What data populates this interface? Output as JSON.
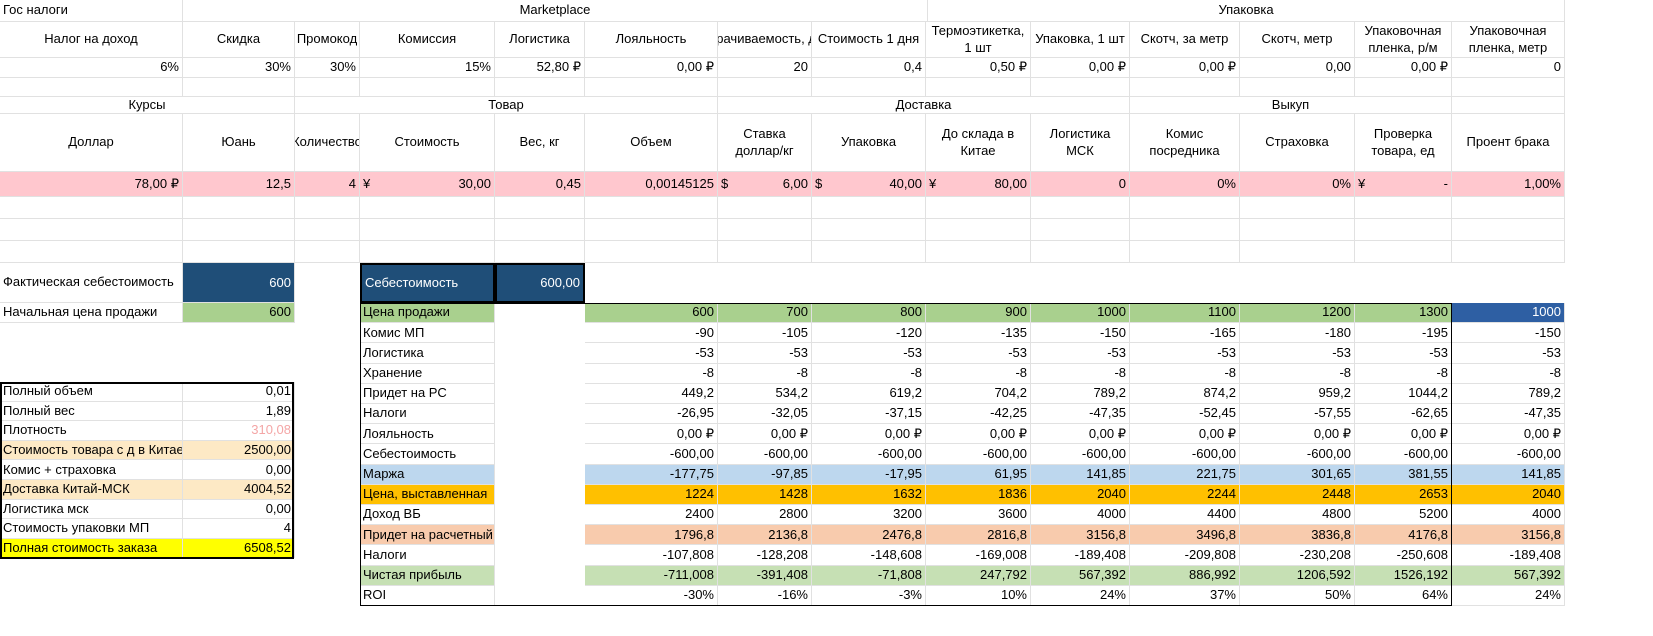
{
  "row1": [
    {
      "key": "gos",
      "text": "Гос налоги",
      "align": "l"
    },
    {
      "key": "marketplace",
      "text": "Marketplace",
      "align": "c"
    },
    {
      "key": "upakovka",
      "text": "Упаковка",
      "align": "c"
    }
  ],
  "params_headers": [
    "Налог на доход",
    "Скидка",
    "Промокод",
    "Комиссия",
    "Логистика",
    "Лояльность",
    "Оборачиваемость, дней",
    "Стоимость 1 дня",
    "Термоэтикетка, 1 шт",
    "Упаковка, 1 шт",
    "Скотч, за метр",
    "Скотч, метр",
    "Упаковочная пленка, р/м",
    "Упаковочная пленка, метр"
  ],
  "params_values": [
    "6%",
    "30%",
    "30%",
    "15%",
    "52,80 ₽",
    "0,00 ₽",
    "20",
    "0,4",
    "0,50 ₽",
    "0,00 ₽",
    "0,00 ₽",
    "0,00",
    "0,00 ₽",
    "0"
  ],
  "groups2": [
    {
      "key": "kursy",
      "text": "Курсы"
    },
    {
      "key": "tovar",
      "text": "Товар"
    },
    {
      "key": "dostavka",
      "text": "Доставка"
    },
    {
      "key": "vykup",
      "text": "Выкуп"
    }
  ],
  "product_headers": [
    "Доллар",
    "Юань",
    "Количество",
    "Стоимость",
    "Вес, кг",
    "Объем",
    "Ставка доллар/кг",
    "Упаковка",
    "До склада в Китае",
    "Логистика МСК",
    "Комис посредника",
    "Страховка",
    "Проверка товара, ед",
    "Проент брака"
  ],
  "product_values": [
    {
      "v": "78,00 ₽"
    },
    {
      "v": "12,5"
    },
    {
      "v": "4"
    },
    {
      "p": "¥",
      "v": "30,00"
    },
    {
      "v": "0,45"
    },
    {
      "v": "0,00145125"
    },
    {
      "p": "$",
      "v": "6,00"
    },
    {
      "p": "$",
      "v": "40,00"
    },
    {
      "p": "¥",
      "v": "80,00"
    },
    {
      "v": "0"
    },
    {
      "v": "0%"
    },
    {
      "v": "0%"
    },
    {
      "p": "¥",
      "v": "-"
    },
    {
      "v": "1,00%"
    }
  ],
  "fact": {
    "label": "Фактическая себестоимость",
    "value": "600"
  },
  "start_price": {
    "label": "Начальная цена продажи",
    "value": "600"
  },
  "summary": [
    {
      "label": "Полный объем",
      "value": "0,01",
      "bg": "#ffffff",
      "color": "#000000"
    },
    {
      "label": "Полный вес",
      "value": "1,89",
      "bg": "#ffffff",
      "color": "#000000"
    },
    {
      "label": "Плотность",
      "value": "310,08",
      "bg": "#ffffff",
      "color": "#f4a6a6"
    },
    {
      "label": "Стоимость товара с д в Китае",
      "value": "2500,00",
      "bg": "#fde9c5",
      "color": "#000000"
    },
    {
      "label": "Комис + страховка",
      "value": "0,00",
      "bg": "#ffffff",
      "color": "#000000"
    },
    {
      "label": "Доставка Китай-МСК",
      "value": "4004,52",
      "bg": "#fde9c5",
      "color": "#000000"
    },
    {
      "label": "Логистика мск",
      "value": "0,00",
      "bg": "#ffffff",
      "color": "#000000"
    },
    {
      "label": "Стоимость упаковки МП",
      "value": "4",
      "bg": "#ffffff",
      "color": "#000000"
    },
    {
      "label": "Полная стоимость заказа",
      "value": "6508,52",
      "bg": "#ffff00",
      "color": "#000000"
    }
  ],
  "cost_header": {
    "label": "Себестоимость",
    "value": "600,00"
  },
  "calc_rows": [
    {
      "label": "Цена продажи",
      "bg": "#a9d08e",
      "values": [
        "600",
        "700",
        "800",
        "900",
        "1000",
        "1100",
        "1200",
        "1300",
        "1000"
      ]
    },
    {
      "label": "Комис МП",
      "bg": "#ffffff",
      "values": [
        "-90",
        "-105",
        "-120",
        "-135",
        "-150",
        "-165",
        "-180",
        "-195",
        "-150"
      ]
    },
    {
      "label": "Логистика",
      "bg": "#ffffff",
      "values": [
        "-53",
        "-53",
        "-53",
        "-53",
        "-53",
        "-53",
        "-53",
        "-53",
        "-53"
      ]
    },
    {
      "label": "Хранение",
      "bg": "#ffffff",
      "values": [
        "-8",
        "-8",
        "-8",
        "-8",
        "-8",
        "-8",
        "-8",
        "-8",
        "-8"
      ]
    },
    {
      "label": "Придет на РС",
      "bg": "#ffffff",
      "values": [
        "449,2",
        "534,2",
        "619,2",
        "704,2",
        "789,2",
        "874,2",
        "959,2",
        "1044,2",
        "789,2"
      ]
    },
    {
      "label": "Налоги",
      "bg": "#ffffff",
      "values": [
        "-26,95",
        "-32,05",
        "-37,15",
        "-42,25",
        "-47,35",
        "-52,45",
        "-57,55",
        "-62,65",
        "-47,35"
      ]
    },
    {
      "label": "Лояльность",
      "bg": "#ffffff",
      "values": [
        "0,00 ₽",
        "0,00 ₽",
        "0,00 ₽",
        "0,00 ₽",
        "0,00 ₽",
        "0,00 ₽",
        "0,00 ₽",
        "0,00 ₽",
        "0,00 ₽"
      ]
    },
    {
      "label": "Себестоимость",
      "bg": "#ffffff",
      "values": [
        "-600,00",
        "-600,00",
        "-600,00",
        "-600,00",
        "-600,00",
        "-600,00",
        "-600,00",
        "-600,00",
        "-600,00"
      ]
    },
    {
      "label": "Маржа",
      "bg": "#bdd7ee",
      "values": [
        "-177,75",
        "-97,85",
        "-17,95",
        "61,95",
        "141,85",
        "221,75",
        "301,65",
        "381,55",
        "141,85"
      ]
    },
    {
      "label": "Цена, выставленная",
      "bg": "#ffc000",
      "values": [
        "1224",
        "1428",
        "1632",
        "1836",
        "2040",
        "2244",
        "2448",
        "2653",
        "2040"
      ]
    },
    {
      "label": "Доход ВБ",
      "bg": "#ffffff",
      "values": [
        "2400",
        "2800",
        "3200",
        "3600",
        "4000",
        "4400",
        "4800",
        "5200",
        "4000"
      ]
    },
    {
      "label": "Придет на расчетный",
      "bg": "#f8cbad",
      "values": [
        "1796,8",
        "2136,8",
        "2476,8",
        "2816,8",
        "3156,8",
        "3496,8",
        "3836,8",
        "4176,8",
        "3156,8"
      ]
    },
    {
      "label": "Налоги",
      "bg": "#ffffff",
      "values": [
        "-107,808",
        "-128,208",
        "-148,608",
        "-169,008",
        "-189,408",
        "-209,808",
        "-230,208",
        "-250,608",
        "-189,408"
      ]
    },
    {
      "label": "Чистая прибыль",
      "bg": "#c6e0b4",
      "values": [
        "-711,008",
        "-391,408",
        "-71,808",
        "247,792",
        "567,392",
        "886,992",
        "1206,592",
        "1526,192",
        "567,392"
      ]
    },
    {
      "label": "ROI",
      "bg": "#ffffff",
      "values": [
        "-30%",
        "-16%",
        "-3%",
        "10%",
        "24%",
        "37%",
        "50%",
        "64%",
        "24%"
      ]
    }
  ],
  "colors": {
    "pink_row": "#ffc7ce",
    "navy": "#1f4e78",
    "blue_sel": "#2e5fa3",
    "green": "#a9d08e",
    "grid": "#e1e1e1"
  }
}
